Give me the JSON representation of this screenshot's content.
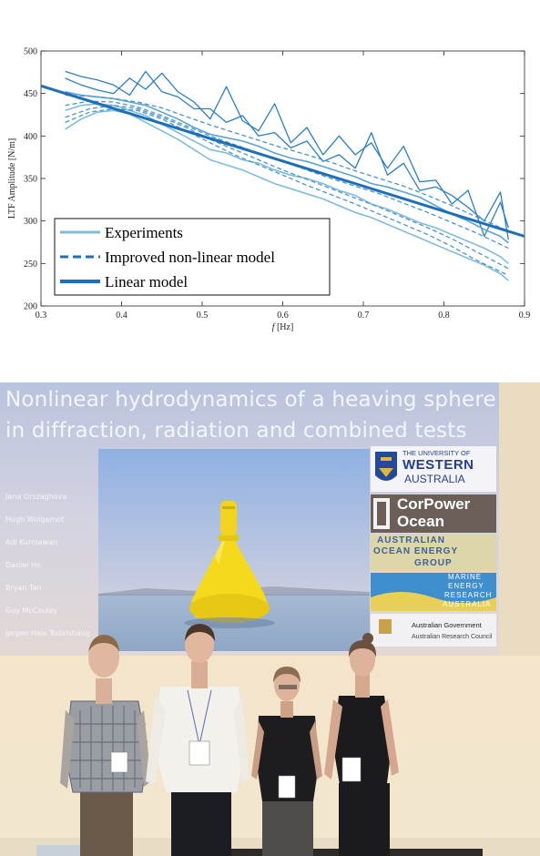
{
  "chart_data": {
    "type": "line",
    "title": "",
    "xlabel_prefix": "f",
    "xlabel_unit": "[Hz]",
    "ylabel": "LTF Amplitude [N/m]",
    "xlim": [
      0.3,
      0.9
    ],
    "ylim": [
      200,
      500
    ],
    "xticks": [
      "0.3",
      "0.4",
      "0.5",
      "0.6",
      "0.7",
      "0.8",
      "0.9"
    ],
    "yticks": [
      "200",
      "250",
      "300",
      "350",
      "400",
      "450",
      "500"
    ],
    "legend": {
      "placement": "bottom-left",
      "entries": [
        "Experiments",
        "Improved non-linear model",
        "Linear model"
      ]
    },
    "colors": {
      "experiments": "#7fbcdc",
      "model": "#4a94cb",
      "linear": "#1c6fba",
      "experiments_bright": "#2a7fc6"
    },
    "series": [
      {
        "role": "linear",
        "x": [
          0.3,
          0.9
        ],
        "values": [
          459,
          282
        ]
      },
      {
        "role": "experiment",
        "shade": "bright",
        "x": [
          0.33,
          0.35,
          0.37,
          0.39,
          0.41,
          0.43,
          0.45,
          0.47,
          0.49,
          0.51,
          0.53,
          0.55,
          0.57,
          0.59,
          0.61,
          0.63,
          0.65,
          0.67,
          0.69,
          0.71,
          0.73,
          0.75,
          0.77,
          0.79,
          0.81,
          0.83,
          0.85,
          0.87,
          0.88
        ],
        "values": [
          468,
          460,
          454,
          450,
          468,
          455,
          474,
          452,
          440,
          420,
          458,
          418,
          406,
          438,
          392,
          410,
          378,
          400,
          378,
          392,
          362,
          388,
          346,
          348,
          320,
          336,
          282,
          322,
          292
        ]
      },
      {
        "role": "experiment",
        "shade": "bright",
        "x": [
          0.33,
          0.35,
          0.37,
          0.39,
          0.41,
          0.43,
          0.45,
          0.47,
          0.49,
          0.51,
          0.53,
          0.55,
          0.57,
          0.59,
          0.61,
          0.63,
          0.65,
          0.67,
          0.69,
          0.71,
          0.73,
          0.75,
          0.77,
          0.79,
          0.81,
          0.83,
          0.85,
          0.87,
          0.88
        ],
        "values": [
          476,
          470,
          466,
          460,
          448,
          476,
          452,
          446,
          432,
          432,
          416,
          424,
          400,
          404,
          386,
          394,
          370,
          378,
          362,
          404,
          354,
          368,
          336,
          340,
          330,
          316,
          300,
          334,
          278
        ]
      },
      {
        "role": "experiment",
        "shade": "mid",
        "x": [
          0.33,
          0.35,
          0.37,
          0.39,
          0.41,
          0.43,
          0.45,
          0.47,
          0.49,
          0.51,
          0.53,
          0.55,
          0.57,
          0.59,
          0.61,
          0.63,
          0.65,
          0.67,
          0.69,
          0.71,
          0.73,
          0.75,
          0.77,
          0.79,
          0.81,
          0.83,
          0.85,
          0.87,
          0.88
        ],
        "values": [
          452,
          448,
          446,
          444,
          440,
          436,
          428,
          420,
          410,
          402,
          398,
          394,
          388,
          380,
          374,
          370,
          364,
          358,
          352,
          344,
          340,
          334,
          328,
          318,
          308,
          300,
          290,
          282,
          274
        ]
      },
      {
        "role": "experiment",
        "shade": "light",
        "x": [
          0.33,
          0.35,
          0.37,
          0.39,
          0.41,
          0.43,
          0.45,
          0.47,
          0.49,
          0.51,
          0.53,
          0.55,
          0.57,
          0.59,
          0.61,
          0.63,
          0.65,
          0.67,
          0.69,
          0.71,
          0.73,
          0.75,
          0.77,
          0.79,
          0.81,
          0.83,
          0.85,
          0.87,
          0.88
        ],
        "values": [
          430,
          436,
          438,
          436,
          430,
          424,
          414,
          404,
          394,
          384,
          380,
          372,
          368,
          360,
          354,
          350,
          344,
          336,
          330,
          320,
          314,
          306,
          298,
          292,
          284,
          276,
          268,
          258,
          250
        ]
      },
      {
        "role": "experiment",
        "shade": "light",
        "x": [
          0.33,
          0.35,
          0.37,
          0.39,
          0.41,
          0.43,
          0.45,
          0.47,
          0.49,
          0.51,
          0.53,
          0.55,
          0.57,
          0.59,
          0.61,
          0.63,
          0.65,
          0.67,
          0.69,
          0.71,
          0.73,
          0.75,
          0.77,
          0.79,
          0.81,
          0.83,
          0.85,
          0.87,
          0.88
        ],
        "values": [
          408,
          420,
          428,
          430,
          426,
          416,
          406,
          396,
          384,
          372,
          366,
          360,
          352,
          344,
          338,
          332,
          326,
          318,
          310,
          304,
          296,
          288,
          280,
          272,
          264,
          256,
          248,
          238,
          230
        ]
      },
      {
        "role": "model",
        "x": [
          0.33,
          0.36,
          0.39,
          0.42,
          0.45,
          0.48,
          0.51,
          0.54,
          0.57,
          0.6,
          0.63,
          0.66,
          0.69,
          0.72,
          0.75,
          0.78,
          0.81,
          0.84,
          0.88
        ],
        "values": [
          448,
          447,
          444,
          440,
          433,
          423,
          413,
          404,
          395,
          386,
          378,
          369,
          359,
          350,
          341,
          330,
          318,
          305,
          288
        ]
      },
      {
        "role": "model",
        "x": [
          0.33,
          0.36,
          0.39,
          0.42,
          0.45,
          0.48,
          0.51,
          0.54,
          0.57,
          0.6,
          0.63,
          0.66,
          0.69,
          0.72,
          0.75,
          0.78,
          0.81,
          0.84,
          0.88
        ],
        "values": [
          436,
          441,
          440,
          434,
          424,
          412,
          400,
          390,
          380,
          370,
          360,
          350,
          341,
          332,
          321,
          310,
          298,
          286,
          268
        ]
      },
      {
        "role": "model",
        "x": [
          0.33,
          0.36,
          0.39,
          0.42,
          0.45,
          0.48,
          0.51,
          0.54,
          0.57,
          0.6,
          0.63,
          0.66,
          0.69,
          0.72,
          0.75,
          0.78,
          0.81,
          0.84,
          0.88
        ],
        "values": [
          422,
          432,
          436,
          432,
          422,
          410,
          396,
          384,
          372,
          360,
          349,
          338,
          327,
          316,
          304,
          292,
          279,
          264,
          244
        ]
      },
      {
        "role": "model",
        "x": [
          0.33,
          0.36,
          0.39,
          0.42,
          0.45,
          0.48,
          0.51,
          0.54,
          0.57,
          0.6,
          0.63,
          0.66,
          0.69,
          0.72,
          0.75,
          0.78,
          0.81,
          0.84,
          0.88
        ],
        "values": [
          416,
          428,
          432,
          430,
          420,
          406,
          392,
          378,
          366,
          354,
          342,
          331,
          320,
          308,
          296,
          284,
          270,
          254,
          236
        ]
      }
    ]
  },
  "slide": {
    "title_line1": "Nonlinear hydrodynamics of a heaving sphere",
    "title_line2": "in diffraction, radiation and combined tests",
    "authors": [
      "Jana Orszaghova",
      "Hugh Wolgamot",
      "Adi Kurniawan",
      "Daniel Ho",
      "Bryan Tan",
      "Guy McCauley",
      "Jørgen Hals Todalshaug"
    ],
    "logos": {
      "uwa_line1": "THE UNIVERSITY OF",
      "uwa_line2": "WESTERN",
      "uwa_line3": "AUSTRALIA",
      "corpower_line1": "CorPower",
      "corpower_line2": "Ocean",
      "aoeg_line1": "AUSTRALIAN",
      "aoeg_line2": "OCEAN ENERGY",
      "aoeg_line3": "GROUP",
      "merra_line1": "MARINE",
      "merra_line2": "ENERGY",
      "merra_line3": "RESEARCH",
      "merra_line4": "AUSTRALIA",
      "gov_line1": "Australian Government",
      "gov_line2": "Australian Research Council"
    }
  }
}
